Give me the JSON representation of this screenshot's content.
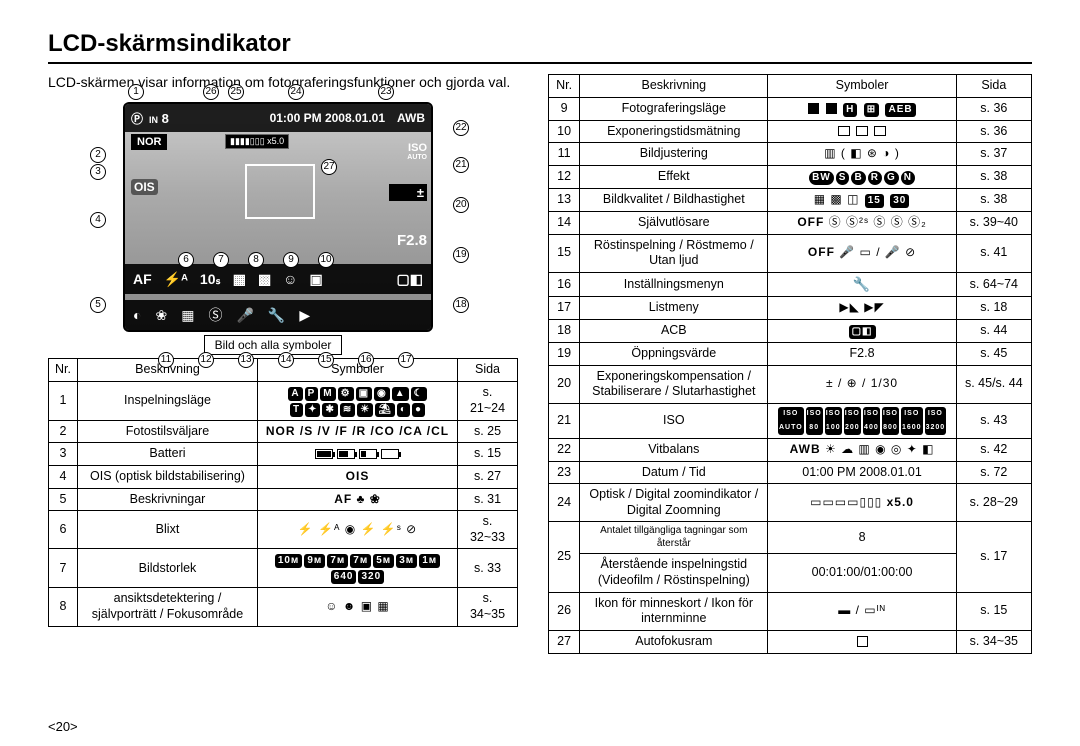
{
  "title": "LCD-skärmsindikator",
  "intro": "LCD-skärmen visar information om fotograferingsfunktioner och gjorda val.",
  "caption": "Bild och alla symboler",
  "page_number": "<20>",
  "lcd": {
    "count": "8",
    "datetime": "01:00 PM 2008.01.01",
    "awb": "AWB",
    "zoom": "x5.0",
    "nor": "NOR",
    "iso": "ISO",
    "iso_auto": "AUTO",
    "ev": "±",
    "aperture": "F2.8",
    "af": "AF",
    "flash": "⚡ᴬ",
    "timer": "10ₛ",
    "ois": "OIS"
  },
  "callouts_top": [
    "1",
    "26",
    "25",
    "24",
    "23"
  ],
  "callouts_left": [
    "2",
    "3",
    "4",
    "5"
  ],
  "callouts_right": [
    "22",
    "21",
    "20",
    "19",
    "18"
  ],
  "callouts_mid_nums": [
    "6",
    "7",
    "8",
    "9",
    "10"
  ],
  "callouts_bot": [
    "11",
    "12",
    "13",
    "14",
    "15",
    "16",
    "17"
  ],
  "callout27": "27",
  "left_table": {
    "headers": [
      "Nr.",
      "Beskrivning",
      "Symboler",
      "Sida"
    ],
    "rows": [
      {
        "nr": "1",
        "besk": "Inspelningsläge",
        "sym": "modes",
        "sida": "s. 21~24"
      },
      {
        "nr": "2",
        "besk": "Fotostilsväljare",
        "sym": "styles",
        "sida": "s. 25"
      },
      {
        "nr": "3",
        "besk": "Batteri",
        "sym": "battery",
        "sida": "s. 15"
      },
      {
        "nr": "4",
        "besk": "OIS (optisk bildstabilisering)",
        "sym": "ois",
        "sida": "s. 27"
      },
      {
        "nr": "5",
        "besk": "Beskrivningar",
        "sym": "af",
        "sida": "s. 31"
      },
      {
        "nr": "6",
        "besk": "Blixt",
        "sym": "flash",
        "sida": "s. 32~33"
      },
      {
        "nr": "7",
        "besk": "Bildstorlek",
        "sym": "size",
        "sida": "s. 33"
      },
      {
        "nr": "8",
        "besk": "ansiktsdetektering / självporträtt / Fokusområde",
        "sym": "focus",
        "sida": "s. 34~35"
      }
    ]
  },
  "right_table": {
    "headers": [
      "Nr.",
      "Beskrivning",
      "Symboler",
      "Sida"
    ],
    "rows": [
      {
        "nr": "9",
        "besk": "Fotograferingsläge",
        "sym": "drive",
        "sida": "s. 36"
      },
      {
        "nr": "10",
        "besk": "Exponeringstidsmätning",
        "sym": "meter",
        "sida": "s. 36"
      },
      {
        "nr": "11",
        "besk": "Bildjustering",
        "sym": "adjust",
        "sida": "s. 37"
      },
      {
        "nr": "12",
        "besk": "Effekt",
        "sym": "effect",
        "sida": "s. 38"
      },
      {
        "nr": "13",
        "besk": "Bildkvalitet / Bildhastighet",
        "sym": "quality",
        "sida": "s. 38"
      },
      {
        "nr": "14",
        "besk": "Självutlösare",
        "sym": "timer",
        "sida": "s. 39~40"
      },
      {
        "nr": "15",
        "besk": "Röstinspelning / Röstmemo / Utan ljud",
        "sym": "voice",
        "sida": "s. 41"
      },
      {
        "nr": "16",
        "besk": "Inställningsmenyn",
        "sym": "wrench",
        "sida": "s. 64~74"
      },
      {
        "nr": "17",
        "besk": "Listmeny",
        "sym": "list",
        "sida": "s. 18"
      },
      {
        "nr": "18",
        "besk": "ACB",
        "sym": "acb",
        "sida": "s. 44"
      },
      {
        "nr": "19",
        "besk": "Öppningsvärde",
        "sym": "f28",
        "sida": "s. 45"
      },
      {
        "nr": "20",
        "besk": "Exponeringskompensation / Stabiliserare / Slutarhastighet",
        "sym": "expcomp",
        "sida": "s. 45/s. 44"
      },
      {
        "nr": "21",
        "besk": "ISO",
        "sym": "iso",
        "sida": "s. 43"
      },
      {
        "nr": "22",
        "besk": "Vitbalans",
        "sym": "wb",
        "sida": "s. 42"
      },
      {
        "nr": "23",
        "besk": "Datum / Tid",
        "sym": "datetime",
        "sida": "s. 72"
      },
      {
        "nr": "24",
        "besk": "Optisk / Digital zoomindikator / Digital Zoomning",
        "sym": "zoom",
        "sida": "s. 28~29"
      },
      {
        "nr": "25",
        "besk_top": "Antalet tillgängliga tagningar som återstår",
        "sym_top": "8",
        "besk_bot": "Återstående inspelningstid (Videofilm / Röstinspelning)",
        "sym_bot": "00:01:00/01:00:00",
        "sida": "s. 17"
      },
      {
        "nr": "26",
        "besk": "Ikon för minneskort / Ikon för internminne",
        "sym": "memory",
        "sida": "s. 15"
      },
      {
        "nr": "27",
        "besk": "Autofokusram",
        "sym": "afframe",
        "sida": "s. 34~35"
      }
    ]
  },
  "symbol_text": {
    "f28": "F2.8",
    "datetime": "01:00 PM 2008.01.01",
    "zoom_x": "x5.0",
    "count8": "8",
    "rectime": "00:01:00/01:00:00",
    "af_text": "AF ♣ ❀",
    "ois_text": "OIS",
    "expcomp": "± / ⊕ / 1/30",
    "nor": "NOR",
    "off": "OFF",
    "awb": "AWB"
  }
}
